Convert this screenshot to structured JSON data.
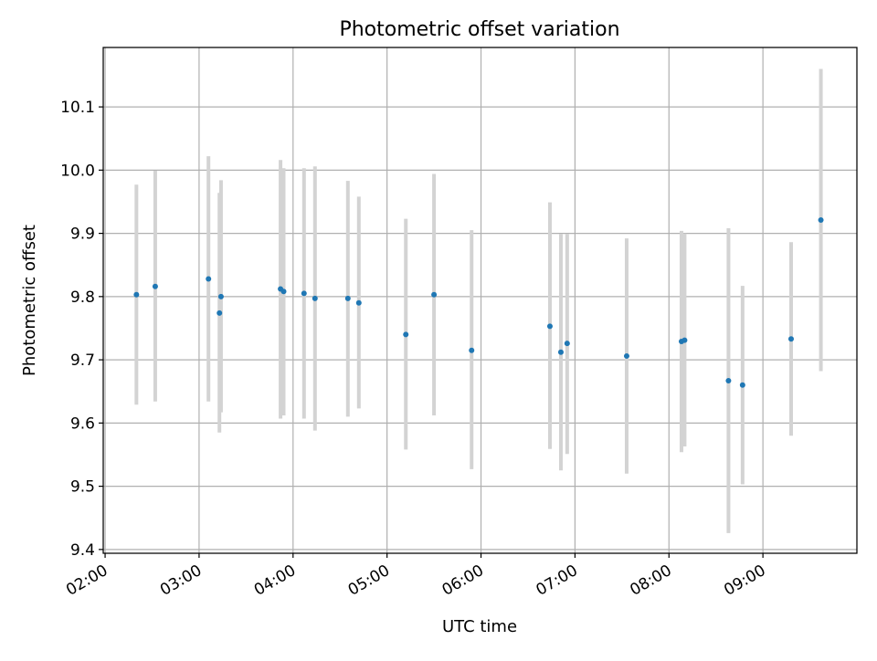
{
  "chart_data": {
    "type": "scatter",
    "title": "Photometric offset variation",
    "xlabel": "UTC time",
    "ylabel": "Photometric offset",
    "x_tick_labels": [
      "02:00",
      "03:00",
      "04:00",
      "05:00",
      "06:00",
      "07:00",
      "08:00",
      "09:00"
    ],
    "y_tick_labels": [
      "9.4",
      "9.5",
      "9.6",
      "9.7",
      "9.8",
      "9.9",
      "10.0",
      "10.1"
    ],
    "x_ticks_hours": [
      2,
      3,
      4,
      5,
      6,
      7,
      8,
      9
    ],
    "y_ticks": [
      9.4,
      9.5,
      9.6,
      9.7,
      9.8,
      9.9,
      10.0,
      10.1
    ],
    "xlim_hours": [
      1.98,
      10.0
    ],
    "ylim": [
      9.394,
      10.194
    ],
    "grid": true,
    "marker_color": "#1f77b4",
    "errorbar_color": "#d3d3d3",
    "series": [
      {
        "points": [
          {
            "x": "02:20",
            "y": 9.803,
            "ylow": 9.629,
            "yhigh": 9.977
          },
          {
            "x": "02:32",
            "y": 9.816,
            "ylow": 9.634,
            "yhigh": 9.999
          },
          {
            "x": "03:06",
            "y": 9.828,
            "ylow": 9.634,
            "yhigh": 10.022
          },
          {
            "x": "03:13",
            "y": 9.774,
            "ylow": 9.585,
            "yhigh": 9.964
          },
          {
            "x": "03:14",
            "y": 9.8,
            "ylow": 9.617,
            "yhigh": 9.984
          },
          {
            "x": "03:52",
            "y": 9.812,
            "ylow": 9.607,
            "yhigh": 10.016
          },
          {
            "x": "03:54",
            "y": 9.808,
            "ylow": 9.612,
            "yhigh": 10.003
          },
          {
            "x": "04:07",
            "y": 9.805,
            "ylow": 9.607,
            "yhigh": 10.003
          },
          {
            "x": "04:14",
            "y": 9.797,
            "ylow": 9.588,
            "yhigh": 10.006
          },
          {
            "x": "04:35",
            "y": 9.797,
            "ylow": 9.61,
            "yhigh": 9.983
          },
          {
            "x": "04:42",
            "y": 9.79,
            "ylow": 9.623,
            "yhigh": 9.958
          },
          {
            "x": "05:12",
            "y": 9.74,
            "ylow": 9.558,
            "yhigh": 9.923
          },
          {
            "x": "05:30",
            "y": 9.803,
            "ylow": 9.612,
            "yhigh": 9.994
          },
          {
            "x": "05:54",
            "y": 9.715,
            "ylow": 9.527,
            "yhigh": 9.905
          },
          {
            "x": "06:44",
            "y": 9.753,
            "ylow": 9.559,
            "yhigh": 9.949
          },
          {
            "x": "06:51",
            "y": 9.712,
            "ylow": 9.525,
            "yhigh": 9.899
          },
          {
            "x": "06:55",
            "y": 9.726,
            "ylow": 9.551,
            "yhigh": 9.899
          },
          {
            "x": "07:33",
            "y": 9.706,
            "ylow": 9.52,
            "yhigh": 9.892
          },
          {
            "x": "08:08",
            "y": 9.729,
            "ylow": 9.554,
            "yhigh": 9.904
          },
          {
            "x": "08:10",
            "y": 9.731,
            "ylow": 9.563,
            "yhigh": 9.9
          },
          {
            "x": "08:38",
            "y": 9.667,
            "ylow": 9.426,
            "yhigh": 9.908
          },
          {
            "x": "08:47",
            "y": 9.66,
            "ylow": 9.503,
            "yhigh": 9.817
          },
          {
            "x": "09:18",
            "y": 9.733,
            "ylow": 9.58,
            "yhigh": 9.886
          },
          {
            "x": "09:37",
            "y": 9.921,
            "ylow": 9.682,
            "yhigh": 10.16
          }
        ]
      }
    ]
  }
}
